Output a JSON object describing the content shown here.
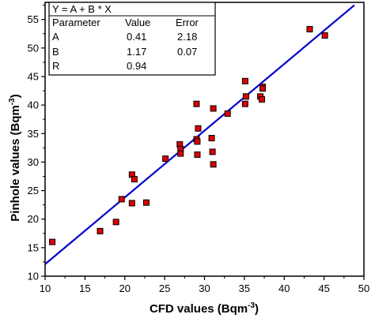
{
  "chart_data": {
    "type": "scatter",
    "xlabel": "CFD values (Bqm",
    "xlabel_sup": "-3",
    "xlabel_end": ")",
    "ylabel": "Pinhole values (Bqm",
    "ylabel_sup": "-3",
    "ylabel_end": ")",
    "xlim": [
      10,
      50
    ],
    "ylim": [
      10,
      58
    ],
    "xticks": [
      10,
      15,
      20,
      25,
      30,
      35,
      40,
      45,
      50
    ],
    "yticks": [
      10,
      15,
      20,
      25,
      30,
      35,
      40,
      45,
      50,
      55
    ],
    "marker_color": "#dd0000",
    "line_color": "#0000cc",
    "fit": {
      "intercept": 0.41,
      "slope": 1.17,
      "x_range": [
        10,
        48.8
      ]
    },
    "points": [
      {
        "x": 10.9,
        "y": 16.0
      },
      {
        "x": 16.9,
        "y": 17.9
      },
      {
        "x": 18.9,
        "y": 19.5
      },
      {
        "x": 19.6,
        "y": 23.5
      },
      {
        "x": 20.9,
        "y": 22.8
      },
      {
        "x": 20.9,
        "y": 27.8
      },
      {
        "x": 21.2,
        "y": 27.0
      },
      {
        "x": 22.7,
        "y": 22.9
      },
      {
        "x": 25.1,
        "y": 30.6
      },
      {
        "x": 26.9,
        "y": 33.1
      },
      {
        "x": 27.0,
        "y": 32.3
      },
      {
        "x": 27.0,
        "y": 31.5
      },
      {
        "x": 29.0,
        "y": 40.2
      },
      {
        "x": 29.0,
        "y": 34.0
      },
      {
        "x": 29.1,
        "y": 33.6
      },
      {
        "x": 29.1,
        "y": 31.3
      },
      {
        "x": 29.2,
        "y": 35.9
      },
      {
        "x": 30.9,
        "y": 34.2
      },
      {
        "x": 31.0,
        "y": 31.8
      },
      {
        "x": 31.1,
        "y": 29.6
      },
      {
        "x": 31.1,
        "y": 39.4
      },
      {
        "x": 32.9,
        "y": 38.5
      },
      {
        "x": 35.1,
        "y": 44.2
      },
      {
        "x": 35.2,
        "y": 41.5
      },
      {
        "x": 35.1,
        "y": 40.2
      },
      {
        "x": 37.0,
        "y": 41.5
      },
      {
        "x": 37.2,
        "y": 41.0
      },
      {
        "x": 37.3,
        "y": 43.2
      },
      {
        "x": 37.3,
        "y": 42.9
      },
      {
        "x": 43.2,
        "y": 53.3
      },
      {
        "x": 45.1,
        "y": 52.2
      }
    ]
  },
  "stats_box": {
    "equation": "Y = A + B * X",
    "headers": [
      "Parameter",
      "Value",
      "Error"
    ],
    "rows": [
      [
        "A",
        "0.41",
        "2.18"
      ],
      [
        "B",
        "1.17",
        "0.07"
      ],
      [
        "R",
        "0.94",
        ""
      ]
    ]
  }
}
